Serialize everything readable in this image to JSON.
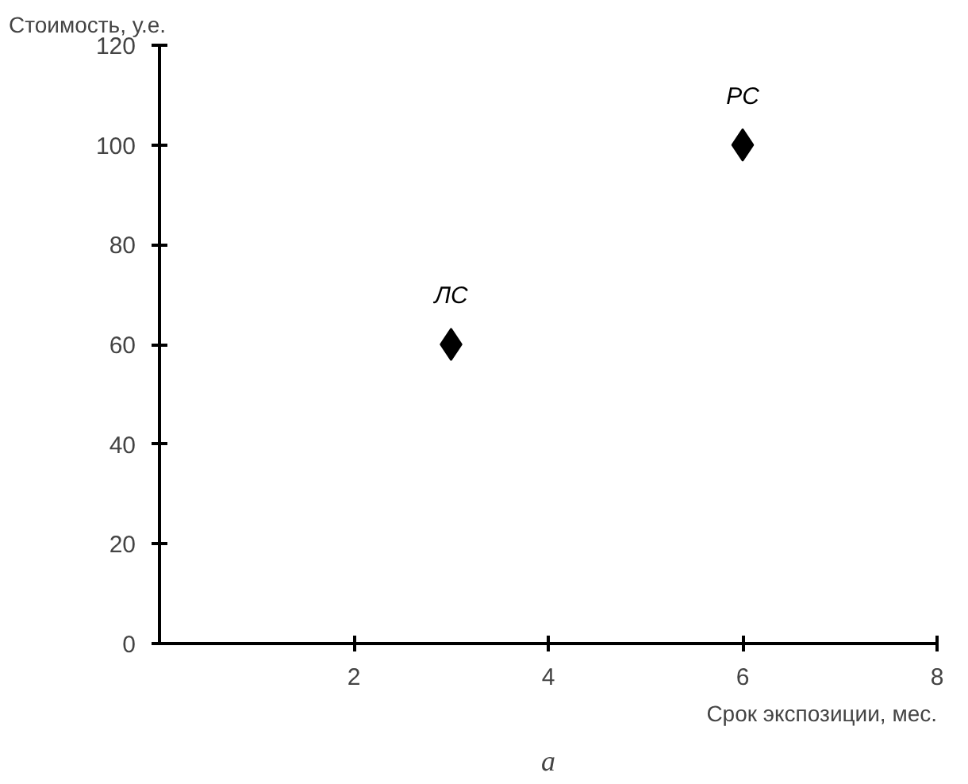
{
  "chart_data": {
    "type": "scatter",
    "ylabel": "Стоимость, у.е.",
    "xlabel": "Срок экспозиции, мес.",
    "x": [
      3,
      6
    ],
    "values": [
      60,
      100
    ],
    "color": "#000000",
    "marker": "diamond",
    "xlim": [
      0,
      8
    ],
    "xticks": [
      2,
      4,
      6,
      8
    ],
    "ylim": [
      0,
      120
    ],
    "yticks": [
      0,
      20,
      40,
      60,
      80,
      100,
      120
    ],
    "grid": false,
    "annotations": [
      {
        "text": "ЛС",
        "x": 3,
        "y": 60
      },
      {
        "text": "РС",
        "x": 6,
        "y": 100
      },
      "а"
    ]
  }
}
